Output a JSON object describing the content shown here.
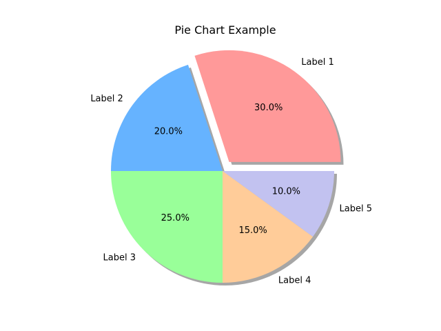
{
  "chart_data": {
    "type": "pie",
    "title": "Pie Chart Example",
    "labels": [
      "Label 1",
      "Label 2",
      "Label 3",
      "Label 4",
      "Label 5"
    ],
    "values": [
      30,
      20,
      25,
      15,
      10
    ],
    "percent_labels": [
      "30.0%",
      "20.0%",
      "25.0%",
      "15.0%",
      "10.0%"
    ],
    "colors": [
      "#ff9999",
      "#66b3ff",
      "#99ff99",
      "#ffcc99",
      "#c2c2f0"
    ],
    "explode": [
      0.1,
      0,
      0,
      0,
      0
    ],
    "shadow": true,
    "start_angle": 0,
    "direction": "counterclockwise"
  }
}
